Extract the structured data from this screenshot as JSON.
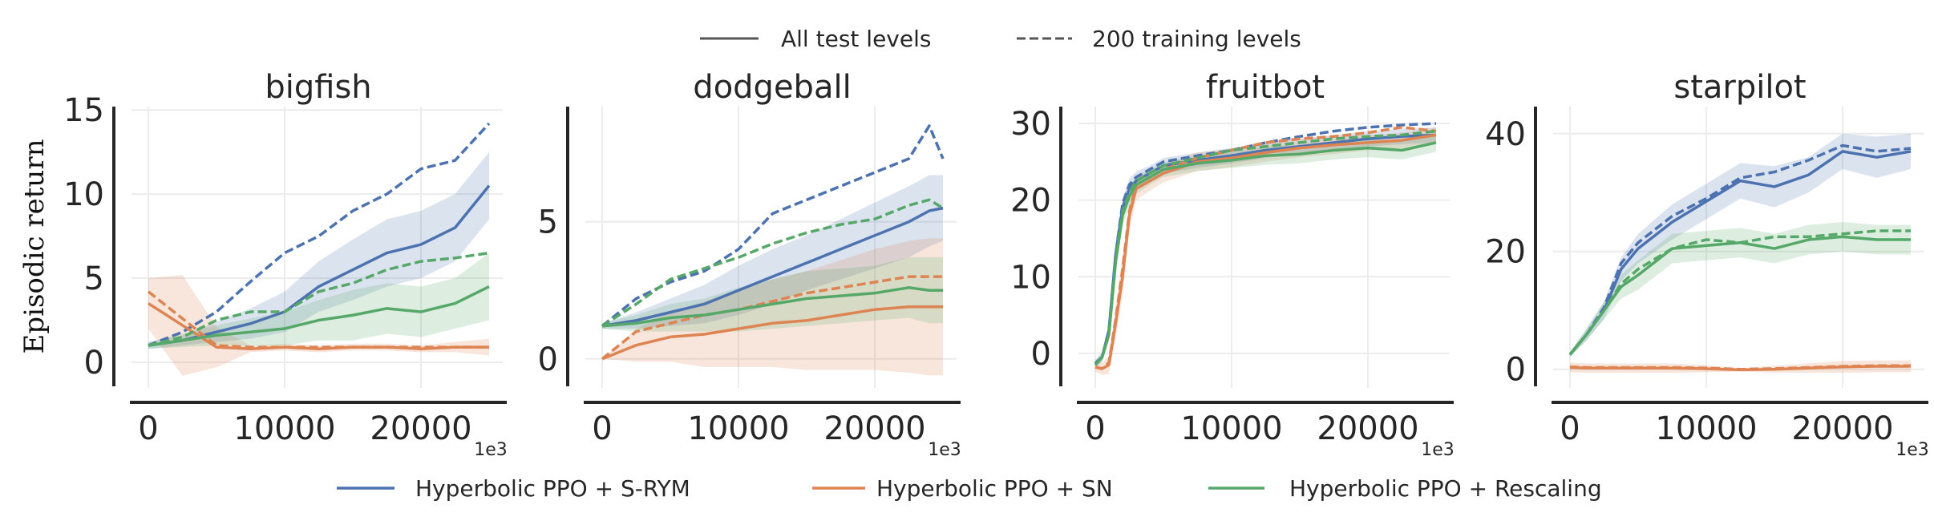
{
  "legend_splits": [
    {
      "label": "All test levels",
      "style": "solid"
    },
    {
      "label": "200 training levels",
      "style": "dashed"
    }
  ],
  "legend_methods": [
    {
      "label": "Hyperbolic PPO + S-RYM",
      "color": "#4c72b0"
    },
    {
      "label": "Hyperbolic PPO + SN",
      "color": "#dd8452"
    },
    {
      "label": "Hyperbolic PPO + Rescaling",
      "color": "#55a868"
    }
  ],
  "chart_data": [
    {
      "type": "line",
      "title": "bigfish",
      "ylabel": "Episodic return",
      "xlabel": "",
      "x_offset_label": "1e3",
      "grid": true,
      "xlim": [
        -2500,
        25000
      ],
      "ylim": [
        -1.43,
        15.2
      ],
      "xticks": [
        0,
        10000,
        20000
      ],
      "xtick_labels": [
        "0",
        "10000",
        "20000"
      ],
      "yticks": [
        0,
        5,
        10,
        15
      ],
      "ytick_labels": [
        "0",
        "5",
        "10",
        "15"
      ],
      "x": [
        0,
        2500,
        5000,
        7500,
        10000,
        12500,
        15000,
        17500,
        20000,
        22500,
        25000
      ],
      "series": [
        {
          "method": 0,
          "split": 0,
          "y": [
            1.0,
            1.3,
            1.8,
            2.3,
            3.0,
            4.5,
            5.5,
            6.5,
            7.0,
            8.0,
            10.5
          ],
          "band": [
            0.2,
            0.3,
            0.6,
            0.9,
            1.2,
            1.5,
            1.8,
            2.0,
            2.0,
            2.0,
            2.0
          ]
        },
        {
          "method": 0,
          "split": 1,
          "y": [
            1.0,
            1.8,
            3.0,
            4.8,
            6.5,
            7.5,
            9.0,
            10.0,
            11.5,
            12.0,
            14.2
          ]
        },
        {
          "method": 1,
          "split": 0,
          "y": [
            3.5,
            2.2,
            0.9,
            0.8,
            0.9,
            0.8,
            0.9,
            0.9,
            0.8,
            0.9,
            0.9
          ],
          "band": [
            1.5,
            3.0,
            1.2,
            0.2,
            0.2,
            0.2,
            0.2,
            0.2,
            0.2,
            0.3,
            0.5
          ]
        },
        {
          "method": 1,
          "split": 1,
          "y": [
            4.2,
            2.6,
            1.0,
            0.9,
            0.9,
            0.9,
            0.9,
            0.9,
            0.9,
            0.9,
            0.9
          ]
        },
        {
          "method": 2,
          "split": 0,
          "y": [
            1.0,
            1.3,
            1.6,
            1.8,
            2.0,
            2.5,
            2.8,
            3.2,
            3.0,
            3.5,
            4.5
          ],
          "band": [
            0.2,
            0.4,
            0.6,
            0.8,
            1.0,
            1.2,
            1.5,
            1.5,
            1.5,
            1.5,
            2.0
          ]
        },
        {
          "method": 2,
          "split": 1,
          "y": [
            1.0,
            1.5,
            2.5,
            3.0,
            3.0,
            4.2,
            4.7,
            5.5,
            6.0,
            6.2,
            6.5
          ]
        }
      ]
    },
    {
      "type": "line",
      "title": "dodgeball",
      "xlabel": "",
      "x_offset_label": "1e3",
      "grid": true,
      "xlim": [
        -2500,
        25000
      ],
      "ylim": [
        -1.0,
        9.2
      ],
      "xticks": [
        0,
        10000,
        20000
      ],
      "xtick_labels": [
        "0",
        "10000",
        "20000"
      ],
      "yticks": [
        0,
        5
      ],
      "ytick_labels": [
        "0",
        "5"
      ],
      "x": [
        0,
        2500,
        5000,
        7500,
        10000,
        12500,
        15000,
        17500,
        20000,
        22500,
        24000,
        25000
      ],
      "series": [
        {
          "method": 0,
          "split": 0,
          "y": [
            1.2,
            1.4,
            1.7,
            2.0,
            2.5,
            3.0,
            3.5,
            4.0,
            4.5,
            5.0,
            5.4,
            5.5
          ],
          "band": [
            0.1,
            0.3,
            0.5,
            0.7,
            0.9,
            1.0,
            1.0,
            1.1,
            1.2,
            1.3,
            1.3,
            1.2
          ]
        },
        {
          "method": 0,
          "split": 1,
          "y": [
            1.2,
            2.2,
            2.8,
            3.2,
            4.0,
            5.3,
            5.8,
            6.3,
            6.8,
            7.3,
            8.5,
            7.3
          ]
        },
        {
          "method": 1,
          "split": 0,
          "y": [
            0.0,
            0.5,
            0.8,
            0.9,
            1.1,
            1.3,
            1.4,
            1.6,
            1.8,
            1.9,
            1.9,
            1.9
          ],
          "band": [
            0.0,
            0.6,
            0.9,
            1.2,
            1.4,
            1.6,
            1.8,
            2.0,
            2.2,
            2.4,
            2.5,
            2.5
          ]
        },
        {
          "method": 1,
          "split": 1,
          "y": [
            0.0,
            1.0,
            1.3,
            1.6,
            1.8,
            2.1,
            2.4,
            2.6,
            2.8,
            3.0,
            3.0,
            3.0
          ]
        },
        {
          "method": 2,
          "split": 0,
          "y": [
            1.2,
            1.3,
            1.5,
            1.6,
            1.8,
            2.0,
            2.2,
            2.3,
            2.4,
            2.6,
            2.5,
            2.5
          ],
          "band": [
            0.1,
            0.3,
            0.5,
            0.6,
            0.8,
            0.9,
            1.0,
            1.0,
            1.0,
            1.1,
            1.2,
            1.2
          ]
        },
        {
          "method": 2,
          "split": 1,
          "y": [
            1.2,
            2.0,
            2.9,
            3.3,
            3.7,
            4.2,
            4.6,
            4.9,
            5.1,
            5.6,
            5.8,
            5.5
          ]
        }
      ]
    },
    {
      "type": "line",
      "title": "fruitbot",
      "xlabel": "",
      "x_offset_label": "1e3",
      "grid": true,
      "xlim": [
        -2500,
        25000
      ],
      "ylim": [
        -4.3,
        32.2
      ],
      "xticks": [
        0,
        10000,
        20000
      ],
      "xtick_labels": [
        "0",
        "10000",
        "20000"
      ],
      "yticks": [
        0,
        10,
        20,
        30
      ],
      "ytick_labels": [
        "0",
        "10",
        "20",
        "30"
      ],
      "x": [
        0,
        500,
        1000,
        1500,
        2000,
        2500,
        3000,
        4000,
        5000,
        7500,
        10000,
        12500,
        15000,
        17500,
        20000,
        22500,
        25000
      ],
      "series": [
        {
          "method": 0,
          "split": 0,
          "y": [
            -1.3,
            -0.5,
            3,
            13,
            19,
            21.5,
            22.5,
            23.5,
            24.5,
            25.2,
            25.8,
            26.5,
            27,
            27.5,
            28,
            28.3,
            28.5
          ],
          "band": [
            0.5,
            0.6,
            1,
            1.2,
            1.3,
            1.3,
            1.2,
            1,
            1,
            1,
            1,
            1,
            1,
            1,
            1,
            1,
            1
          ]
        },
        {
          "method": 0,
          "split": 1,
          "y": [
            -1.3,
            -0.5,
            3,
            13,
            19.5,
            22,
            23,
            24,
            25,
            25.8,
            26.5,
            27.5,
            28.3,
            29,
            29.5,
            29.8,
            30
          ]
        },
        {
          "method": 1,
          "split": 0,
          "y": [
            -1.8,
            -2,
            -1.5,
            4,
            10,
            18,
            21.5,
            22.5,
            23.5,
            25,
            25.5,
            26.2,
            26.8,
            27.2,
            27.5,
            27.8,
            28.5
          ],
          "band": [
            0.6,
            0.8,
            1.2,
            2,
            2.5,
            2,
            1.5,
            1.3,
            1.2,
            1.2,
            1.2,
            1.2,
            1.2,
            1.2,
            1,
            1,
            1
          ]
        },
        {
          "method": 1,
          "split": 1,
          "y": [
            -1.8,
            -2,
            -1.2,
            4.5,
            11,
            18.5,
            22,
            23,
            24,
            25.5,
            26.5,
            27.5,
            28,
            28.3,
            28.8,
            29.5,
            29
          ]
        },
        {
          "method": 2,
          "split": 0,
          "y": [
            -1.5,
            -0.5,
            2.5,
            12,
            18,
            20.5,
            22,
            23,
            24,
            24.8,
            25.2,
            25.8,
            26,
            26.5,
            26.8,
            26.5,
            27.5
          ],
          "band": [
            0.5,
            0.6,
            1,
            1.2,
            1.3,
            1.3,
            1.2,
            1,
            1,
            1,
            1,
            1.2,
            1.2,
            1.2,
            1.2,
            1.2,
            1.2
          ]
        },
        {
          "method": 2,
          "split": 1,
          "y": [
            -1.5,
            -0.5,
            2.5,
            12.5,
            18.5,
            21,
            22.5,
            23.5,
            24.5,
            25.5,
            26.5,
            27,
            27.5,
            28,
            28.3,
            28.5,
            29
          ]
        }
      ]
    },
    {
      "type": "line",
      "title": "starpilot",
      "xlabel": "",
      "x_offset_label": "1e3",
      "grid": true,
      "xlim": [
        -2500,
        25000
      ],
      "ylim": [
        -2.9,
        44.6
      ],
      "xticks": [
        0,
        10000,
        20000
      ],
      "xtick_labels": [
        "0",
        "10000",
        "20000"
      ],
      "yticks": [
        0,
        20,
        40
      ],
      "ytick_labels": [
        "0",
        "20",
        "40"
      ],
      "x": [
        0,
        1250,
        2500,
        3750,
        5000,
        7500,
        10000,
        12500,
        15000,
        17500,
        20000,
        22500,
        25000
      ],
      "series": [
        {
          "method": 0,
          "split": 0,
          "y": [
            2.5,
            6,
            10,
            17,
            20.5,
            25,
            28.5,
            32,
            31,
            33,
            37,
            36,
            37
          ],
          "band": [
            0.4,
            1,
            1.5,
            2,
            2.5,
            3,
            3,
            3,
            3.5,
            3,
            3,
            3.5,
            3
          ]
        },
        {
          "method": 0,
          "split": 1,
          "y": [
            2.5,
            6,
            10.5,
            18,
            21.5,
            26,
            29,
            32.5,
            33.5,
            35.5,
            38,
            37,
            37.5
          ]
        },
        {
          "method": 1,
          "split": 0,
          "y": [
            0.3,
            0.2,
            0.2,
            0.2,
            0.2,
            0.2,
            0.1,
            -0.1,
            0.0,
            0.2,
            0.4,
            0.5,
            0.5
          ],
          "band": [
            0.8,
            0.8,
            0.8,
            0.8,
            0.8,
            0.8,
            0.6,
            0.3,
            0.6,
            0.8,
            1,
            1,
            1
          ]
        },
        {
          "method": 1,
          "split": 1,
          "y": [
            0.4,
            0.3,
            0.3,
            0.3,
            0.3,
            0.3,
            0.2,
            0.0,
            0.1,
            0.3,
            0.5,
            0.6,
            0.6
          ]
        },
        {
          "method": 2,
          "split": 0,
          "y": [
            2.5,
            6,
            10,
            14,
            16,
            20.5,
            21,
            21.5,
            20.5,
            22,
            22.5,
            22,
            22
          ],
          "band": [
            0.4,
            1,
            1.5,
            2,
            2.5,
            2.5,
            2.5,
            2.5,
            2.5,
            2.5,
            2.5,
            2.5,
            2.5
          ]
        },
        {
          "method": 2,
          "split": 1,
          "y": [
            2.5,
            6,
            10,
            14.5,
            17,
            20.5,
            22,
            21.5,
            22.5,
            22.5,
            23,
            23.5,
            23.5
          ]
        }
      ]
    }
  ]
}
